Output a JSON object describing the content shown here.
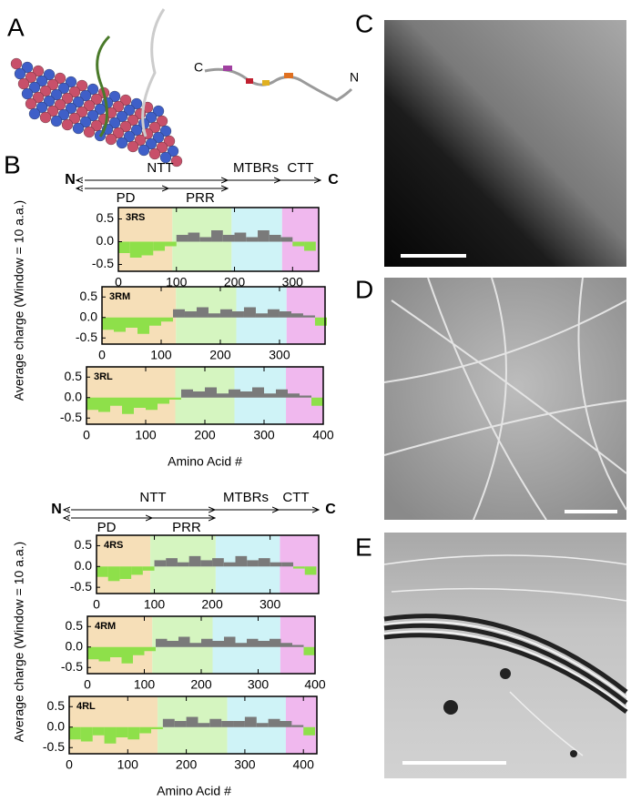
{
  "panel_labels": [
    "A",
    "B",
    "C",
    "D",
    "E"
  ],
  "panel_a": {
    "c_label": "C",
    "n_label": "N"
  },
  "groups": [
    {
      "n": "N",
      "c": "C",
      "domains": [
        "NTT",
        "MTBRs",
        "CTT"
      ],
      "subdomains": [
        "PD",
        "PRR"
      ],
      "ylabel": "Average charge (Window = 10 a.a.)",
      "xlabel": "Amino Acid #"
    },
    {
      "n": "N",
      "c": "C",
      "domains": [
        "NTT",
        "MTBRs",
        "CTT"
      ],
      "subdomains": [
        "PD",
        "PRR"
      ],
      "ylabel": "Average charge (Window = 10 a.a.)",
      "xlabel": "Amino Acid #"
    }
  ],
  "chart_data": [
    {
      "type": "bar",
      "label": "3RS",
      "positive_color": "#7a7a7a",
      "negative_color": "#8ee04a",
      "regions": [
        {
          "x": [
            0,
            93
          ],
          "color": "#f6dfb8"
        },
        {
          "x": [
            93,
            195
          ],
          "color": "#d5f5c0"
        },
        {
          "x": [
            195,
            282
          ],
          "color": "#cff3f7"
        },
        {
          "x": [
            282,
            345
          ],
          "color": "#f0b8ee"
        }
      ],
      "x": [
        10,
        30,
        50,
        70,
        90,
        110,
        130,
        150,
        170,
        190,
        210,
        230,
        250,
        270,
        290,
        310,
        330
      ],
      "values": [
        -0.25,
        -0.35,
        -0.3,
        -0.2,
        -0.1,
        0.15,
        0.2,
        0.1,
        0.25,
        0.15,
        0.2,
        0.1,
        0.25,
        0.15,
        0.1,
        -0.1,
        -0.2
      ],
      "xlim": [
        0,
        345
      ],
      "xticks": [
        0,
        100,
        200,
        300
      ],
      "ylim": [
        -0.65,
        0.75
      ],
      "yticks": [
        -0.5,
        {
          "value": 0,
          "label": "0.0"
        },
        0.5
      ]
    },
    {
      "type": "bar",
      "label": "3RM",
      "positive_color": "#7a7a7a",
      "negative_color": "#8ee04a",
      "regions": [
        {
          "x": [
            0,
            125
          ],
          "color": "#f6dfb8"
        },
        {
          "x": [
            125,
            227
          ],
          "color": "#d5f5c0"
        },
        {
          "x": [
            227,
            312
          ],
          "color": "#cff3f7"
        },
        {
          "x": [
            312,
            377
          ],
          "color": "#f0b8ee"
        }
      ],
      "x": [
        10,
        30,
        50,
        70,
        90,
        110,
        130,
        150,
        170,
        190,
        210,
        230,
        250,
        270,
        290,
        310,
        330,
        350,
        370
      ],
      "values": [
        -0.3,
        -0.35,
        -0.25,
        -0.4,
        -0.2,
        -0.1,
        0.2,
        0.15,
        0.25,
        0.1,
        0.2,
        0.15,
        0.25,
        0.1,
        0.2,
        0.15,
        0.1,
        0.05,
        -0.2
      ],
      "xlim": [
        0,
        377
      ],
      "xticks": [
        0,
        100,
        200,
        300
      ],
      "ylim": [
        -0.65,
        0.75
      ],
      "yticks": [
        -0.5,
        {
          "value": 0,
          "label": "0.0"
        },
        0.5
      ]
    },
    {
      "type": "bar",
      "label": "3RL",
      "positive_color": "#7a7a7a",
      "negative_color": "#8ee04a",
      "regions": [
        {
          "x": [
            0,
            150
          ],
          "color": "#f6dfb8"
        },
        {
          "x": [
            150,
            250
          ],
          "color": "#d5f5c0"
        },
        {
          "x": [
            250,
            337
          ],
          "color": "#cff3f7"
        },
        {
          "x": [
            337,
            400
          ],
          "color": "#f0b8ee"
        }
      ],
      "x": [
        10,
        30,
        50,
        70,
        90,
        110,
        130,
        150,
        170,
        190,
        210,
        230,
        250,
        270,
        290,
        310,
        330,
        350,
        370,
        390
      ],
      "values": [
        -0.3,
        -0.35,
        -0.2,
        -0.4,
        -0.25,
        -0.3,
        -0.15,
        -0.05,
        0.2,
        0.15,
        0.25,
        0.1,
        0.2,
        0.15,
        0.25,
        0.1,
        0.2,
        0.1,
        0.05,
        -0.2
      ],
      "xlim": [
        0,
        400
      ],
      "xticks": [
        0,
        100,
        200,
        300,
        400
      ],
      "ylim": [
        -0.65,
        0.75
      ],
      "yticks": [
        -0.5,
        {
          "value": 0,
          "label": "0.0"
        },
        0.5
      ]
    },
    {
      "type": "bar",
      "label": "4RS",
      "positive_color": "#7a7a7a",
      "negative_color": "#8ee04a",
      "regions": [
        {
          "x": [
            0,
            93
          ],
          "color": "#f6dfb8"
        },
        {
          "x": [
            93,
            206
          ],
          "color": "#d5f5c0"
        },
        {
          "x": [
            206,
            317
          ],
          "color": "#cff3f7"
        },
        {
          "x": [
            317,
            384
          ],
          "color": "#f0b8ee"
        }
      ],
      "x": [
        10,
        30,
        50,
        70,
        90,
        110,
        130,
        150,
        170,
        190,
        210,
        230,
        250,
        270,
        290,
        310,
        330,
        350,
        370
      ],
      "values": [
        -0.25,
        -0.35,
        -0.3,
        -0.2,
        -0.1,
        0.15,
        0.2,
        0.1,
        0.25,
        0.15,
        0.2,
        0.1,
        0.25,
        0.15,
        0.2,
        0.1,
        0.1,
        -0.05,
        -0.2
      ],
      "xlim": [
        0,
        384
      ],
      "xticks": [
        0,
        100,
        200,
        300
      ],
      "ylim": [
        -0.65,
        0.75
      ],
      "yticks": [
        -0.5,
        {
          "value": 0,
          "label": "0.0"
        },
        0.5
      ]
    },
    {
      "type": "bar",
      "label": "4RM",
      "positive_color": "#7a7a7a",
      "negative_color": "#8ee04a",
      "regions": [
        {
          "x": [
            0,
            114
          ],
          "color": "#f6dfb8"
        },
        {
          "x": [
            114,
            220
          ],
          "color": "#d5f5c0"
        },
        {
          "x": [
            220,
            339
          ],
          "color": "#cff3f7"
        },
        {
          "x": [
            339,
            400
          ],
          "color": "#f0b8ee"
        }
      ],
      "x": [
        10,
        30,
        50,
        70,
        90,
        110,
        130,
        150,
        170,
        190,
        210,
        230,
        250,
        270,
        290,
        310,
        330,
        350,
        370,
        390
      ],
      "values": [
        -0.3,
        -0.35,
        -0.25,
        -0.4,
        -0.2,
        -0.1,
        0.2,
        0.15,
        0.25,
        0.1,
        0.2,
        0.15,
        0.25,
        0.1,
        0.2,
        0.15,
        0.2,
        0.1,
        0.05,
        -0.2
      ],
      "xlim": [
        0,
        400
      ],
      "xticks": [
        0,
        100,
        200,
        300,
        400
      ],
      "ylim": [
        -0.65,
        0.75
      ],
      "yticks": [
        -0.5,
        {
          "value": 0,
          "label": "0.0"
        },
        0.5
      ]
    },
    {
      "type": "bar",
      "label": "4RL",
      "positive_color": "#7a7a7a",
      "negative_color": "#8ee04a",
      "regions": [
        {
          "x": [
            0,
            151
          ],
          "color": "#f6dfb8"
        },
        {
          "x": [
            151,
            270
          ],
          "color": "#d5f5c0"
        },
        {
          "x": [
            270,
            370
          ],
          "color": "#cff3f7"
        },
        {
          "x": [
            370,
            423
          ],
          "color": "#f0b8ee"
        }
      ],
      "x": [
        10,
        30,
        50,
        70,
        90,
        110,
        130,
        150,
        170,
        190,
        210,
        230,
        250,
        270,
        290,
        310,
        330,
        350,
        370,
        390,
        410
      ],
      "values": [
        -0.3,
        -0.35,
        -0.2,
        -0.4,
        -0.25,
        -0.3,
        -0.15,
        -0.05,
        0.2,
        0.15,
        0.25,
        0.1,
        0.2,
        0.15,
        0.15,
        0.25,
        0.1,
        0.2,
        0.15,
        0.05,
        -0.2
      ],
      "xlim": [
        0,
        423
      ],
      "xticks": [
        0,
        100,
        200,
        300,
        400
      ],
      "ylim": [
        -0.65,
        0.75
      ],
      "yticks": [
        -0.5,
        {
          "value": 0,
          "label": "0.0"
        },
        0.5
      ]
    }
  ]
}
